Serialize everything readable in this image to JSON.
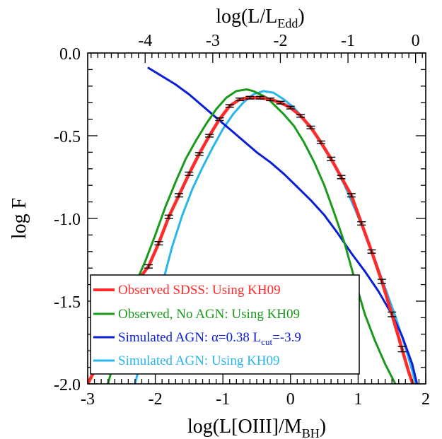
{
  "chart_data": {
    "type": "line",
    "xlabel": {
      "main": "log(L[OIII]/M",
      "sub": "BH",
      "tail": ")"
    },
    "ylabel": "log F",
    "top_label": {
      "main": "log(L/L",
      "sub": "Edd",
      "tail": ")"
    },
    "xlim": [
      -3,
      2
    ],
    "ylim": [
      -2.0,
      0.0
    ],
    "x_ticks": [
      -3,
      -2,
      -1,
      0,
      1,
      2
    ],
    "x_tick_labels": [
      "-3",
      "-2",
      "-1",
      "0",
      "1",
      "2"
    ],
    "y_ticks": [
      0.0,
      -0.5,
      -1.0,
      -1.5,
      -2.0
    ],
    "y_tick_labels": [
      "0.0",
      "-0.5",
      "-1.0",
      "-1.5",
      "-2.0"
    ],
    "top_ticks": [
      -4,
      -3,
      -2,
      -1,
      0
    ],
    "top_tick_labels": [
      "-4",
      "-3",
      "-2",
      "-1",
      "0"
    ],
    "top_axis_x_at_zero": 1.85,
    "series": [
      {
        "name": "Observed SDSS: Using KH09",
        "color": "#ff2a2a",
        "x": [
          -3.0,
          -2.9,
          -2.75,
          -2.6,
          -2.4,
          -2.25,
          -2.1,
          -1.95,
          -1.8,
          -1.65,
          -1.5,
          -1.35,
          -1.2,
          -1.05,
          -0.9,
          -0.75,
          -0.6,
          -0.45,
          -0.3,
          -0.15,
          0.0,
          0.15,
          0.3,
          0.45,
          0.6,
          0.75,
          0.9,
          1.05,
          1.2,
          1.35,
          1.5,
          1.65,
          1.75,
          1.85,
          1.9
        ],
        "y": [
          -2.0,
          -1.92,
          -1.77,
          -1.63,
          -1.45,
          -1.37,
          -1.29,
          -1.15,
          -0.99,
          -0.86,
          -0.73,
          -0.61,
          -0.5,
          -0.4,
          -0.32,
          -0.28,
          -0.27,
          -0.27,
          -0.28,
          -0.3,
          -0.33,
          -0.38,
          -0.45,
          -0.54,
          -0.64,
          -0.75,
          -0.86,
          -1.03,
          -1.2,
          -1.38,
          -1.58,
          -1.79,
          -1.93,
          -2.05,
          -2.12
        ]
      },
      {
        "name": "Observed, No AGN: Using KH09",
        "color": "#1a9a1a",
        "x": [
          -2.7,
          -2.6,
          -2.45,
          -2.3,
          -2.15,
          -2.0,
          -1.85,
          -1.7,
          -1.55,
          -1.4,
          -1.25,
          -1.1,
          -0.95,
          -0.8,
          -0.65,
          -0.55,
          -0.45,
          -0.35,
          -0.25,
          -0.1,
          0.05,
          0.2,
          0.35,
          0.5,
          0.65,
          0.8,
          0.95,
          1.1,
          1.25,
          1.4,
          1.55
        ],
        "y": [
          -2.0,
          -1.85,
          -1.58,
          -1.4,
          -1.26,
          -1.1,
          -0.93,
          -0.78,
          -0.64,
          -0.53,
          -0.43,
          -0.34,
          -0.27,
          -0.23,
          -0.22,
          -0.23,
          -0.25,
          -0.27,
          -0.31,
          -0.37,
          -0.44,
          -0.54,
          -0.66,
          -0.8,
          -0.97,
          -1.15,
          -1.37,
          -1.58,
          -1.74,
          -1.88,
          -2.0
        ]
      },
      {
        "name": "Simulated AGN: α=0.38 L_cut=-3.9",
        "color": "#0a1ed6",
        "x": [
          -2.1,
          -1.9,
          -1.7,
          -1.5,
          -1.3,
          -1.1,
          -0.9,
          -0.7,
          -0.5,
          -0.3,
          -0.1,
          0.1,
          0.3,
          0.5,
          0.7,
          0.9,
          1.1,
          1.3,
          1.5,
          1.65,
          1.8,
          1.9
        ],
        "y": [
          -0.09,
          -0.14,
          -0.19,
          -0.25,
          -0.32,
          -0.39,
          -0.46,
          -0.53,
          -0.6,
          -0.66,
          -0.73,
          -0.81,
          -0.89,
          -0.98,
          -1.09,
          -1.21,
          -1.32,
          -1.44,
          -1.58,
          -1.71,
          -1.88,
          -2.05
        ]
      },
      {
        "name": "Simulated AGN: Using KH09",
        "color": "#27b6ee",
        "x": [
          -2.3,
          -2.2,
          -2.05,
          -1.9,
          -1.75,
          -1.6,
          -1.45,
          -1.3,
          -1.15,
          -1.0,
          -0.85,
          -0.7,
          -0.55,
          -0.4,
          -0.25,
          -0.1,
          0.05,
          0.2,
          0.35,
          0.5,
          0.65,
          0.8,
          0.95,
          1.1,
          1.25,
          1.4,
          1.55,
          1.7,
          1.8,
          1.85
        ],
        "y": [
          -2.0,
          -1.84,
          -1.64,
          -1.4,
          -1.17,
          -0.98,
          -0.82,
          -0.69,
          -0.57,
          -0.46,
          -0.37,
          -0.3,
          -0.25,
          -0.23,
          -0.24,
          -0.28,
          -0.33,
          -0.4,
          -0.48,
          -0.58,
          -0.68,
          -0.8,
          -0.94,
          -1.09,
          -1.25,
          -1.42,
          -1.59,
          -1.78,
          -1.92,
          -2.0
        ]
      }
    ],
    "error_points": {
      "color": "#000000",
      "x": [
        -2.1,
        -1.95,
        -1.8,
        -1.65,
        -1.5,
        -1.35,
        -1.2,
        -1.05,
        -0.9,
        -0.75,
        -0.6,
        -0.45,
        -0.3,
        -0.15,
        0.0,
        0.15,
        0.3,
        0.45,
        0.6,
        0.75,
        0.9,
        1.05,
        1.2,
        1.35,
        1.5,
        1.65
      ],
      "y": [
        -1.29,
        -1.15,
        -0.99,
        -0.86,
        -0.73,
        -0.61,
        -0.5,
        -0.4,
        -0.32,
        -0.28,
        -0.27,
        -0.27,
        -0.28,
        -0.3,
        -0.33,
        -0.38,
        -0.45,
        -0.54,
        -0.64,
        -0.75,
        -0.86,
        -1.03,
        -1.2,
        -1.38,
        -1.58,
        -1.79
      ],
      "err": [
        0.01,
        0.01,
        0.01,
        0.01,
        0.01,
        0.008,
        0.008,
        0.008,
        0.008,
        0.008,
        0.008,
        0.008,
        0.008,
        0.008,
        0.008,
        0.008,
        0.008,
        0.008,
        0.01,
        0.01,
        0.01,
        0.01,
        0.01,
        0.012,
        0.014,
        0.016
      ]
    },
    "legend": {
      "position": "lower-left",
      "entries": [
        {
          "main": "Observed SDSS: Using KH09",
          "sub": "",
          "tail": "",
          "color": "#ff2a2a"
        },
        {
          "main": "Observed, No AGN: Using KH09",
          "sub": "",
          "tail": "",
          "color": "#1a9a1a"
        },
        {
          "main": "Simulated AGN: α=0.38 L",
          "sub": "cut",
          "tail": "=-3.9",
          "color": "#0a1ed6"
        },
        {
          "main": "Simulated AGN: Using KH09",
          "sub": "",
          "tail": "",
          "color": "#27b6ee"
        }
      ]
    }
  }
}
